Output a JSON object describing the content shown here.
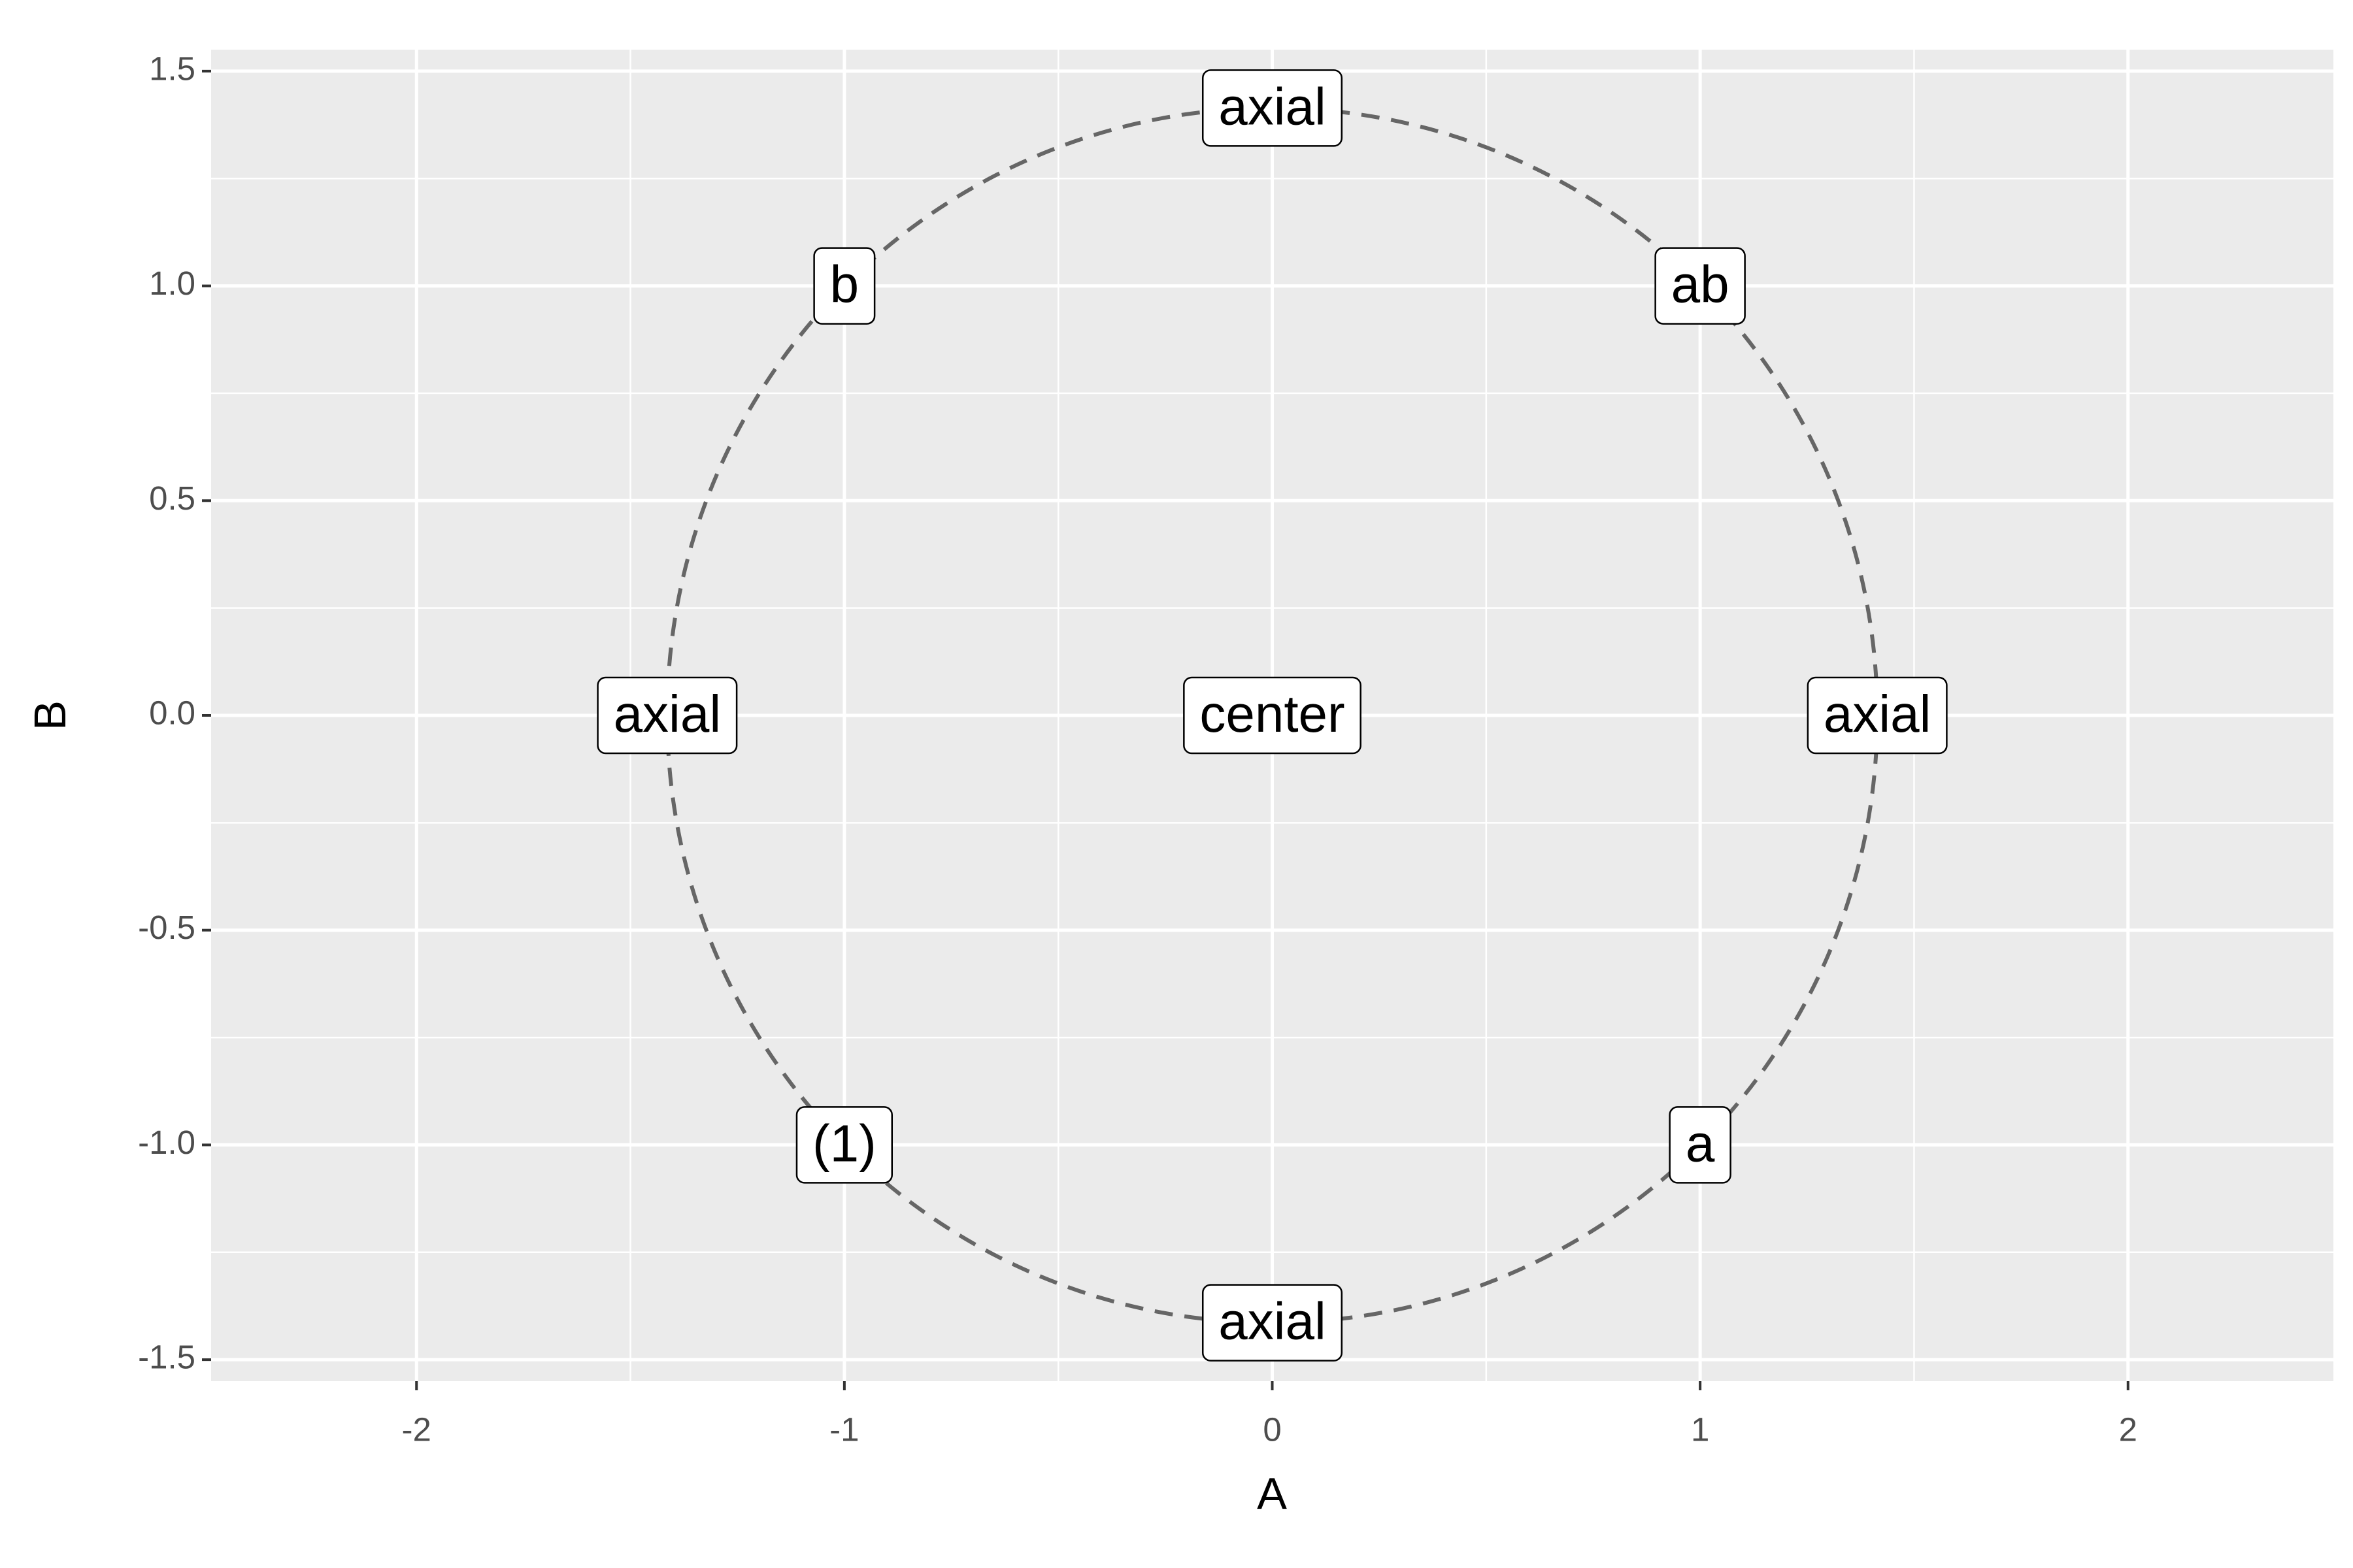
{
  "chart_data": {
    "type": "scatter",
    "x_label": "A",
    "y_label": "B",
    "x": [
      -1,
      1,
      -1,
      1,
      -1.414,
      1.414,
      0,
      0,
      0
    ],
    "y": [
      -1,
      -1,
      1,
      1,
      0,
      0,
      -1.414,
      1.414,
      0
    ],
    "labels": [
      "(1)",
      "a",
      "b",
      "ab",
      "axial",
      "axial",
      "axial",
      "axial",
      "center"
    ],
    "reference_circle_radius": 1.414,
    "circle_color": "#666666",
    "xlim": [
      -2.48,
      2.48
    ],
    "xticks": [
      -2,
      -1,
      0,
      1,
      2
    ],
    "ylim": [
      -1.55,
      1.55
    ],
    "yticks": [
      -1.5,
      {
        "value": -1,
        "label": "-1.0"
      },
      -0.5,
      {
        "value": 0,
        "label": "0.0"
      },
      0.5,
      {
        "value": 1,
        "label": "1.0"
      },
      1.5
    ],
    "grid": true
  }
}
